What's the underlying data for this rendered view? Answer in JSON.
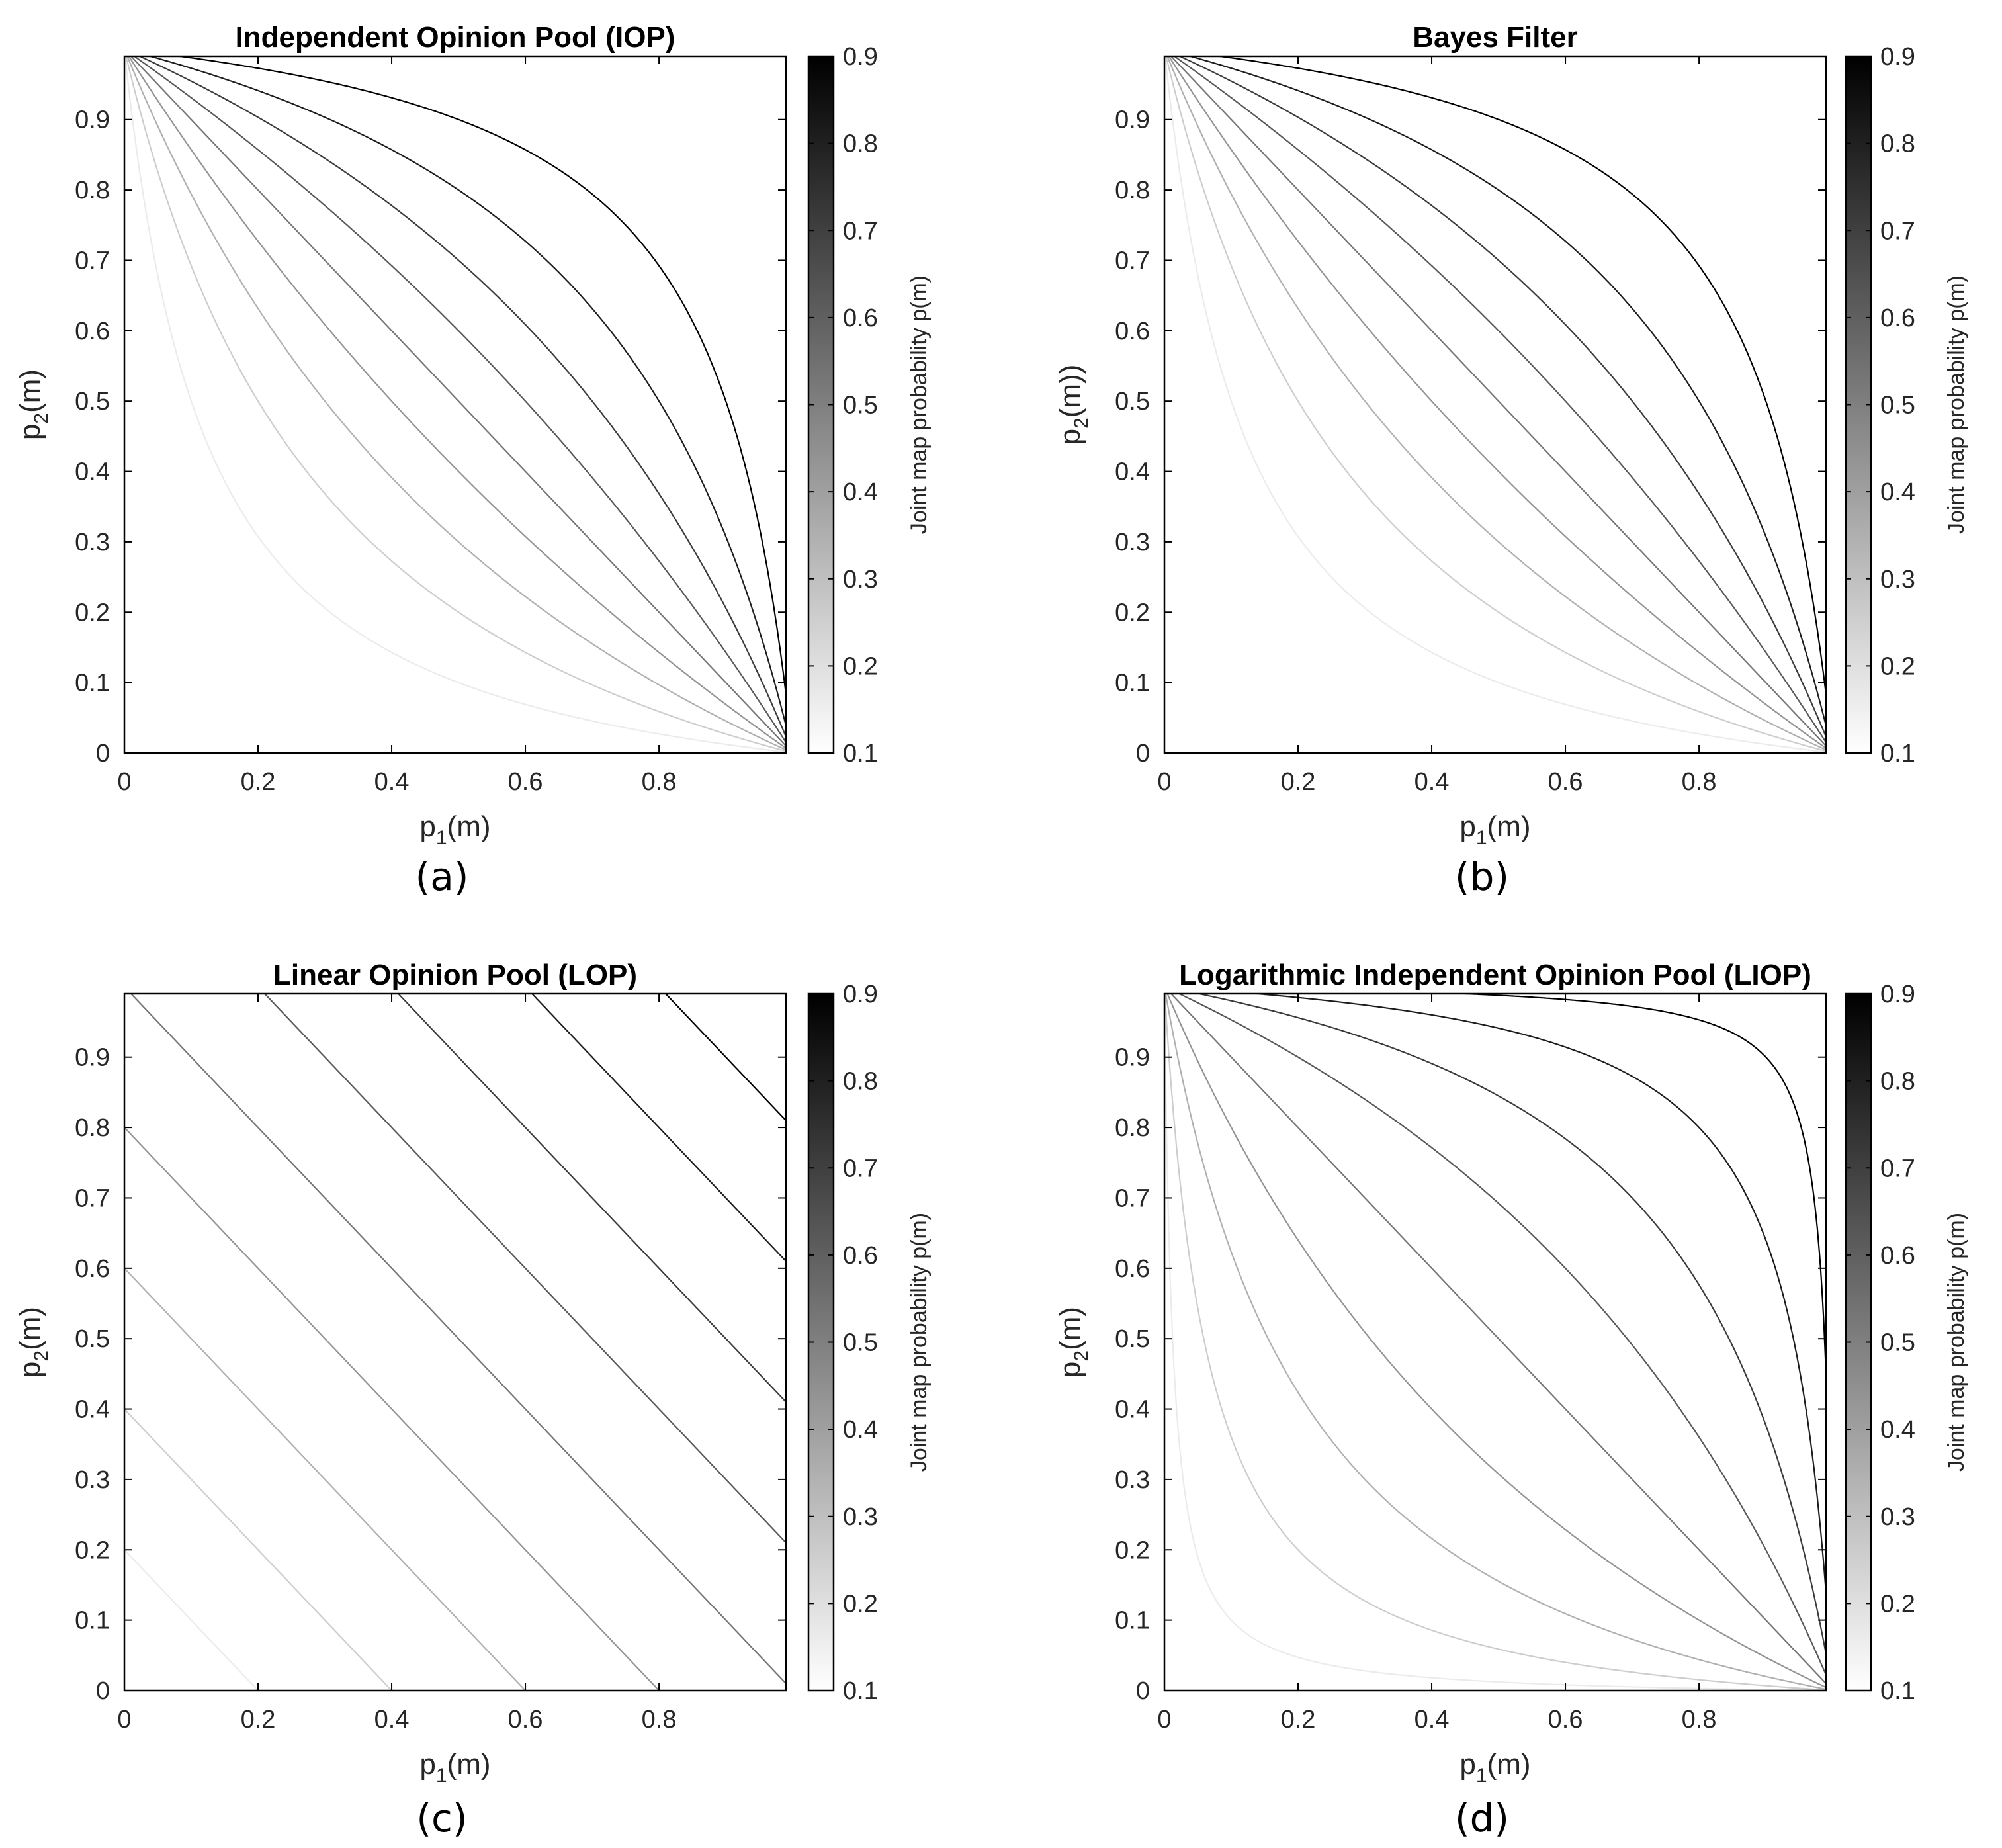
{
  "figure": {
    "cbar_label": "Joint map probability p(m)",
    "levels": [
      0.1,
      0.2,
      0.3,
      0.4,
      0.5,
      0.6,
      0.7,
      0.8,
      0.9
    ]
  },
  "chart_data": [
    {
      "type": "contour",
      "method": "iop",
      "title": "Independent Opinion Pool (IOP)",
      "xlabel_main": "p",
      "xlabel_sub": "1",
      "xlabel_rest": "(m)",
      "ylabel_main": "p",
      "ylabel_sub": "2",
      "ylabel_rest": "(m)",
      "xlim": [
        0,
        0.99
      ],
      "ylim": [
        0,
        0.99
      ],
      "xticks": [
        "0",
        "0.2",
        "0.4",
        "0.6",
        "0.8"
      ],
      "yticks": [
        "0",
        "0.1",
        "0.2",
        "0.3",
        "0.4",
        "0.5",
        "0.6",
        "0.7",
        "0.8",
        "0.9"
      ],
      "cbar_ticks": [
        "0.1",
        "0.2",
        "0.3",
        "0.4",
        "0.5",
        "0.6",
        "0.7",
        "0.8",
        "0.9"
      ],
      "levels": [
        0.1,
        0.2,
        0.3,
        0.4,
        0.5,
        0.6,
        0.7,
        0.8,
        0.9
      ],
      "panel_label": "(a)"
    },
    {
      "type": "contour",
      "method": "bayes",
      "title": "Bayes Filter",
      "xlabel_main": "p",
      "xlabel_sub": "1",
      "xlabel_rest": "(m)",
      "ylabel_main": "p",
      "ylabel_sub": "2",
      "ylabel_rest": "(m))",
      "xlim": [
        0,
        0.99
      ],
      "ylim": [
        0,
        0.99
      ],
      "xticks": [
        "0",
        "0.2",
        "0.4",
        "0.6",
        "0.8"
      ],
      "yticks": [
        "0",
        "0.1",
        "0.2",
        "0.3",
        "0.4",
        "0.5",
        "0.6",
        "0.7",
        "0.8",
        "0.9"
      ],
      "cbar_ticks": [
        "0.1",
        "0.2",
        "0.3",
        "0.4",
        "0.5",
        "0.6",
        "0.7",
        "0.8",
        "0.9"
      ],
      "levels": [
        0.1,
        0.2,
        0.3,
        0.4,
        0.5,
        0.6,
        0.7,
        0.8,
        0.9
      ],
      "panel_label": "(b)"
    },
    {
      "type": "contour",
      "method": "lop",
      "title": "Linear Opinion Pool (LOP)",
      "xlabel_main": "p",
      "xlabel_sub": "1",
      "xlabel_rest": "(m)",
      "ylabel_main": "p",
      "ylabel_sub": "2",
      "ylabel_rest": "(m)",
      "xlim": [
        0,
        0.99
      ],
      "ylim": [
        0,
        0.99
      ],
      "xticks": [
        "0",
        "0.2",
        "0.4",
        "0.6",
        "0.8"
      ],
      "yticks": [
        "0",
        "0.1",
        "0.2",
        "0.3",
        "0.4",
        "0.5",
        "0.6",
        "0.7",
        "0.8",
        "0.9"
      ],
      "cbar_ticks": [
        "0.1",
        "0.2",
        "0.3",
        "0.4",
        "0.5",
        "0.6",
        "0.7",
        "0.8",
        "0.9"
      ],
      "levels": [
        0.1,
        0.2,
        0.3,
        0.4,
        0.5,
        0.6,
        0.7,
        0.8,
        0.9
      ],
      "panel_label": "(c)"
    },
    {
      "type": "contour",
      "method": "liop",
      "title": "Logarithmic Independent Opinion Pool (LIOP)",
      "xlabel_main": "p",
      "xlabel_sub": "1",
      "xlabel_rest": "(m)",
      "ylabel_main": "p",
      "ylabel_sub": "2",
      "ylabel_rest": "(m)",
      "xlim": [
        0,
        0.99
      ],
      "ylim": [
        0,
        0.99
      ],
      "xticks": [
        "0",
        "0.2",
        "0.4",
        "0.6",
        "0.8"
      ],
      "yticks": [
        "0",
        "0.1",
        "0.2",
        "0.3",
        "0.4",
        "0.5",
        "0.6",
        "0.7",
        "0.8",
        "0.9"
      ],
      "cbar_ticks": [
        "0.1",
        "0.2",
        "0.3",
        "0.4",
        "0.5",
        "0.6",
        "0.7",
        "0.8",
        "0.9"
      ],
      "levels": [
        0.1,
        0.2,
        0.3,
        0.4,
        0.5,
        0.6,
        0.7,
        0.8,
        0.9
      ],
      "panel_label": "(d)"
    }
  ]
}
